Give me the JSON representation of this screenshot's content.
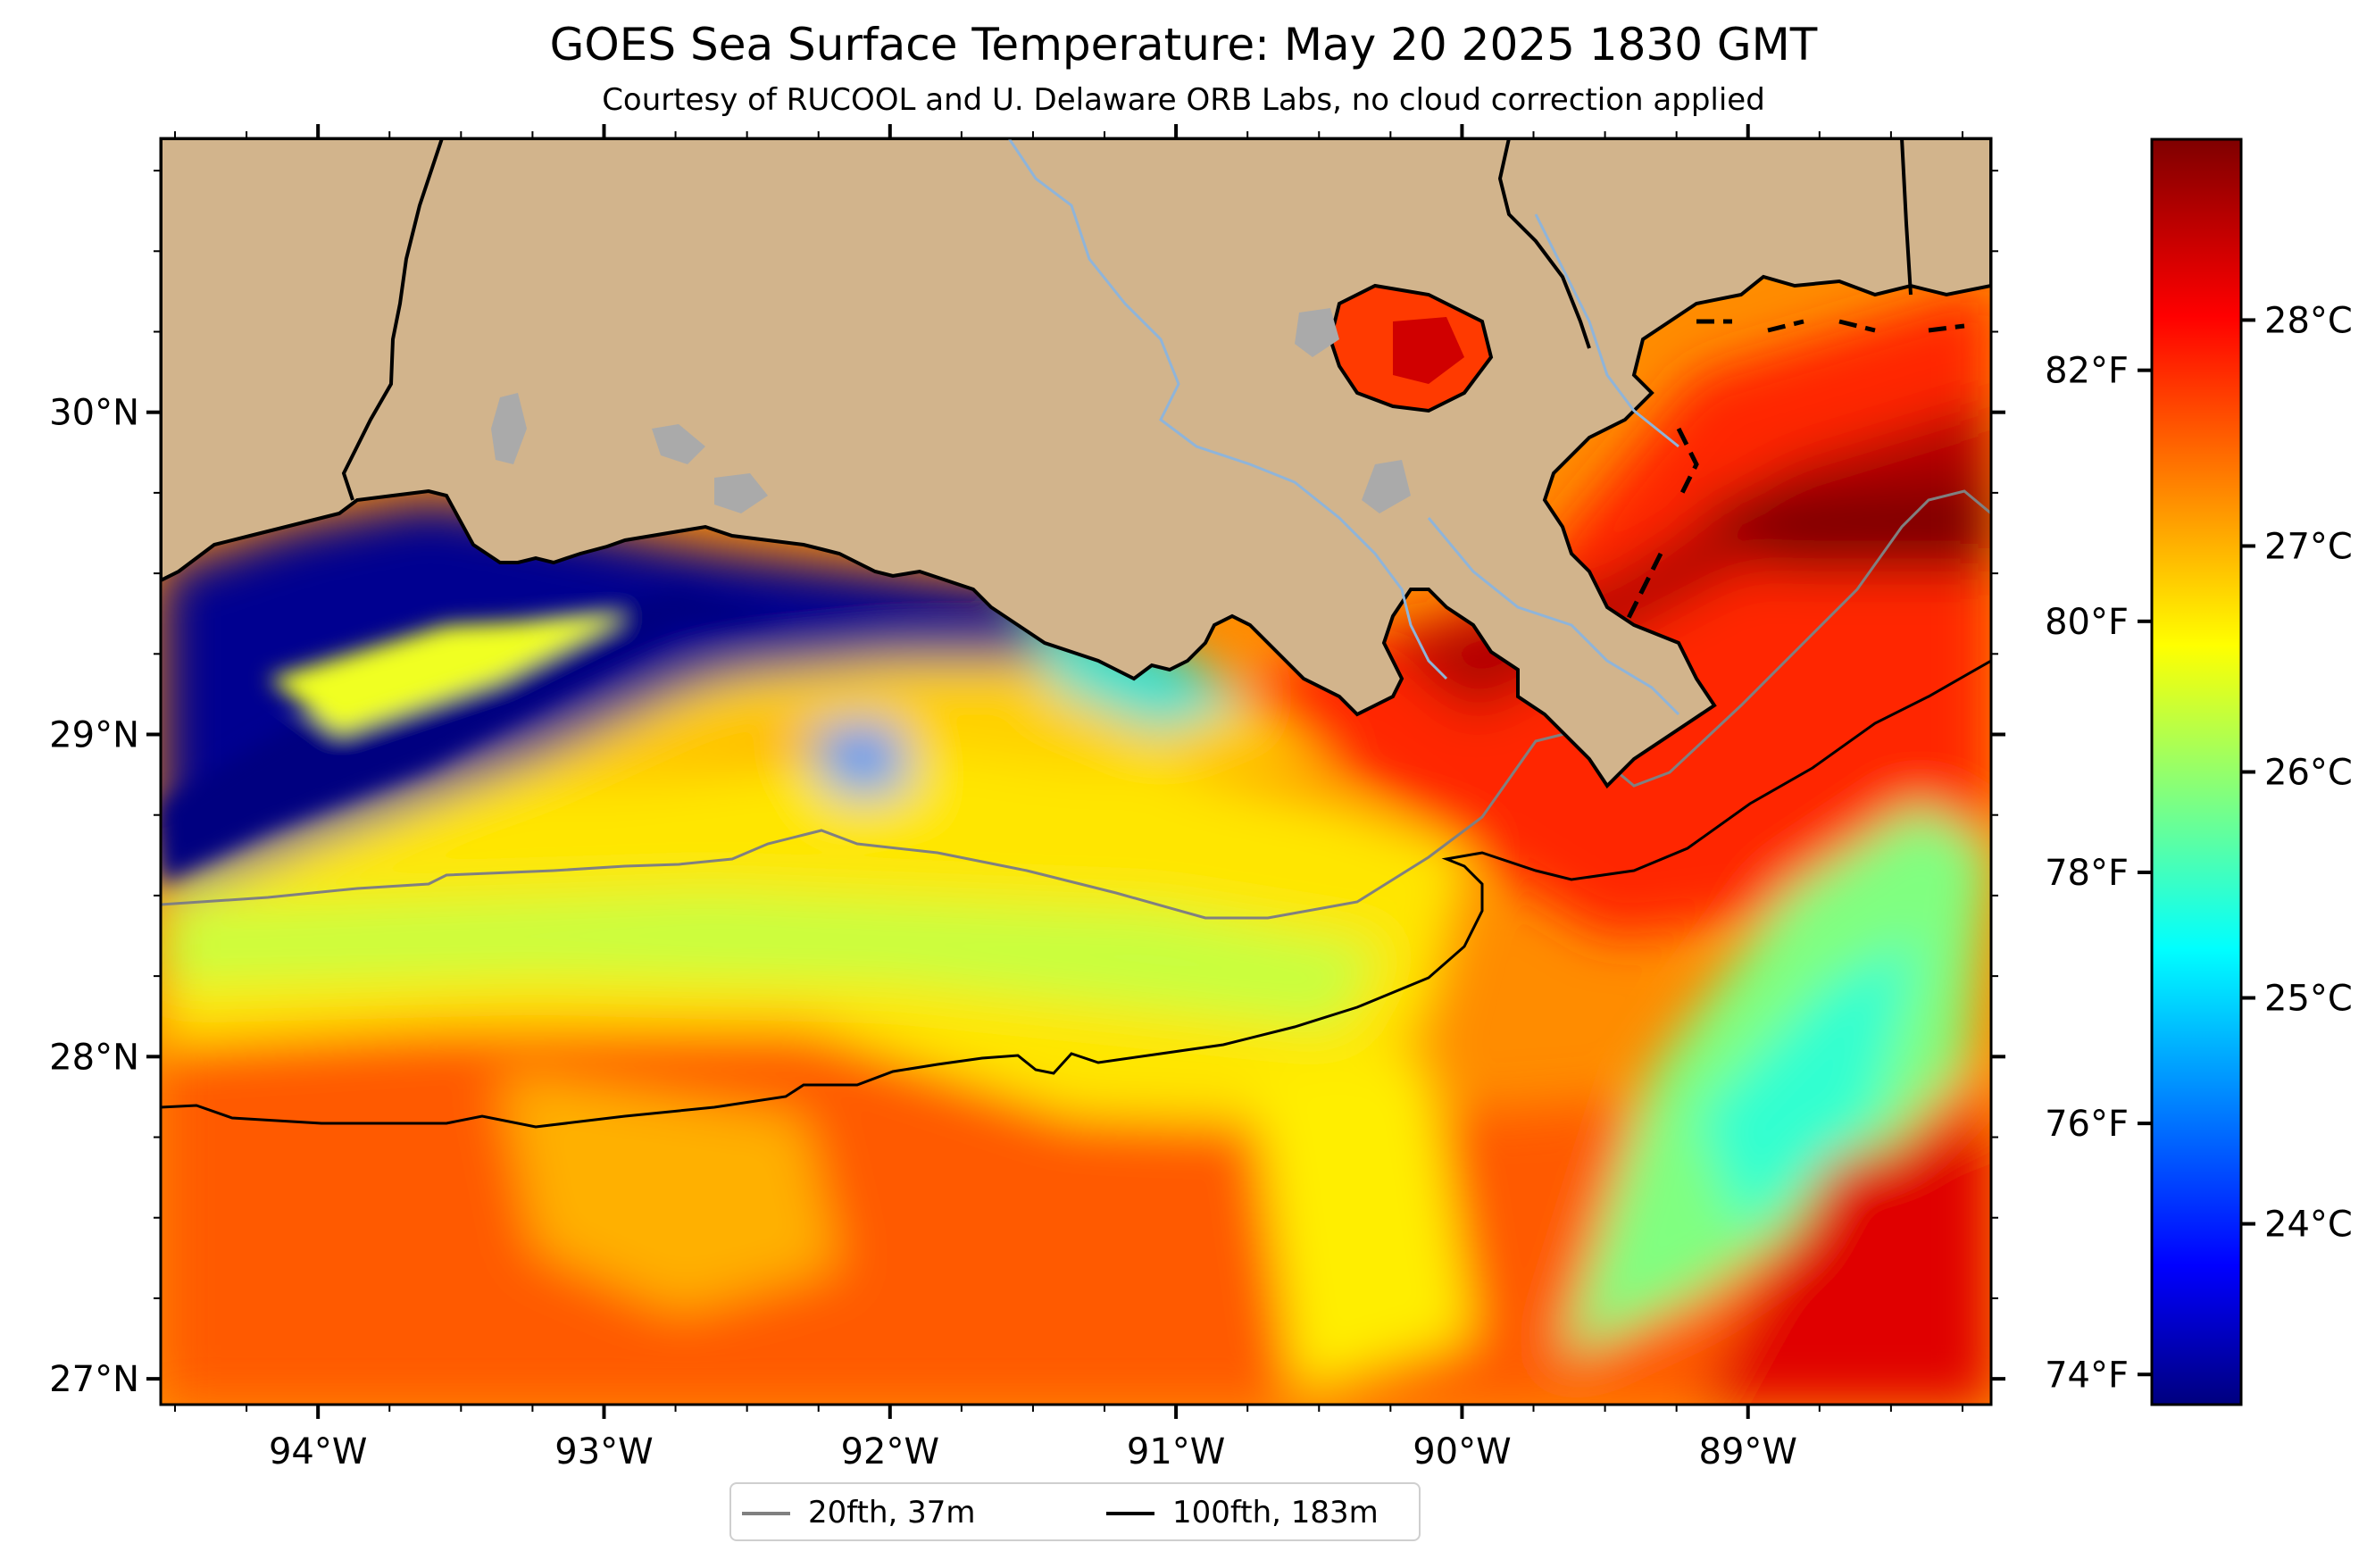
{
  "title": "GOES Sea Surface Temperature: May 20 2025 1830 GMT",
  "subtitle": "Courtesy of RUCOOL and U. Delaware ORB Labs, no cloud correction applied",
  "map": {
    "lon_range": [
      -94.55,
      -88.15
    ],
    "lat_range": [
      26.92,
      30.85
    ],
    "lon_ticks": [
      "94°W",
      "93°W",
      "92°W",
      "91°W",
      "90°W",
      "89°W"
    ],
    "lat_ticks": [
      "30°N",
      "29°N",
      "28°N",
      "27°N"
    ],
    "land_color": "#d2b48c",
    "lake_color": "#aaaaaa",
    "river_color": "#8fb4d9"
  },
  "colorbar": {
    "colormap": "jet",
    "celsius_range": [
      23.2,
      28.8
    ],
    "celsius_ticks": [
      "24°C",
      "25°C",
      "26°C",
      "27°C",
      "28°C"
    ],
    "fahrenheit_ticks": [
      "74°F",
      "76°F",
      "78°F",
      "80°F",
      "82°F"
    ],
    "colors": [
      "#00007f",
      "#0000ff",
      "#00ffff",
      "#ffff00",
      "#ff0000",
      "#7f0000"
    ]
  },
  "legend": [
    {
      "label": "20fth, 37m",
      "color": "#808080"
    },
    {
      "label": "100fth, 183m",
      "color": "#000000"
    }
  ]
}
